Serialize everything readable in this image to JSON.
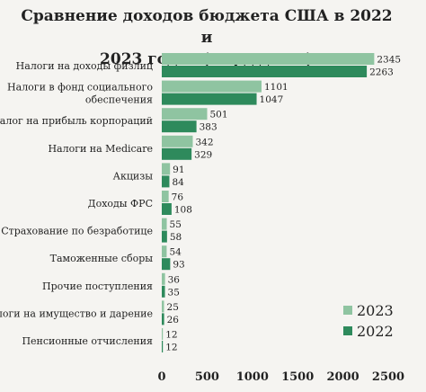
{
  "chart_data": {
    "type": "bar",
    "orientation": "horizontal",
    "title_lines": [
      "Сравнение доходов бюджета США в 2022 и",
      "2023 годах (млрд долл.)"
    ],
    "categories": [
      [
        "Налоги на доходы физлиц"
      ],
      [
        "Налоги в фонд социального",
        "обеспечения"
      ],
      [
        "Налог на прибыль корпораций"
      ],
      [
        "Налоги на Medicare"
      ],
      [
        "Акцизы"
      ],
      [
        "Доходы ФРС"
      ],
      [
        "Страхование по безработице"
      ],
      [
        "Таможенные сборы"
      ],
      [
        "Прочие поступления"
      ],
      [
        "Налоги на имущество и дарение"
      ],
      [
        "Пенсионные отчисления"
      ]
    ],
    "series": [
      {
        "name": "2023",
        "color": "#8fc4a1",
        "values": [
          2345,
          1101,
          501,
          342,
          91,
          76,
          55,
          54,
          36,
          25,
          12
        ]
      },
      {
        "name": "2022",
        "color": "#2e8a5c",
        "values": [
          2263,
          1047,
          383,
          329,
          84,
          108,
          58,
          93,
          35,
          26,
          12
        ]
      }
    ],
    "xlim": [
      0,
      2500
    ],
    "xticks": [
      0,
      500,
      1000,
      1500,
      2000,
      2500
    ],
    "legend_position": "bottom-right",
    "grid": false
  }
}
